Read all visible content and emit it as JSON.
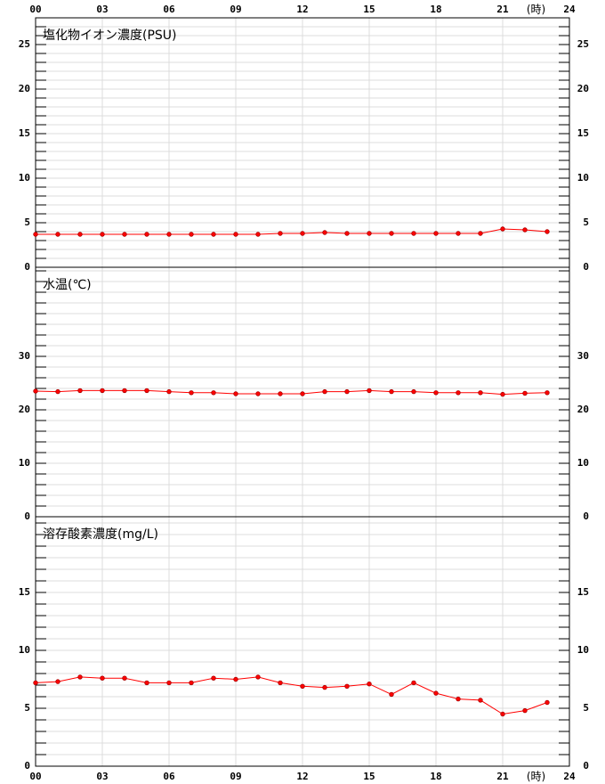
{
  "x_axis": {
    "xlim": [
      0,
      24
    ],
    "xticks": [
      {
        "value": 0,
        "label": "00"
      },
      {
        "value": 3,
        "label": "03"
      },
      {
        "value": 6,
        "label": "06"
      },
      {
        "value": 9,
        "label": "09"
      },
      12,
      15,
      18,
      21,
      24
    ],
    "label": "(時)"
  },
  "chart_data": [
    {
      "type": "line",
      "title": "塩化物イオン濃度(PSU)",
      "color": "#ff0000",
      "x": [
        0,
        1,
        2,
        3,
        4,
        5,
        6,
        7,
        8,
        9,
        10,
        11,
        12,
        13,
        14,
        15,
        16,
        17,
        18,
        19,
        20,
        21,
        22,
        23
      ],
      "values": [
        3.7,
        3.7,
        3.7,
        3.7,
        3.7,
        3.7,
        3.7,
        3.7,
        3.7,
        3.7,
        3.7,
        3.8,
        3.8,
        3.9,
        3.8,
        3.8,
        3.8,
        3.8,
        3.8,
        3.8,
        3.8,
        4.3,
        4.2,
        4.0
      ],
      "ylim": [
        0,
        28
      ],
      "yticks": [
        0,
        5,
        10,
        15,
        20,
        25
      ],
      "minor_tick_step": 1,
      "grid": true
    },
    {
      "type": "line",
      "title": "水温(℃)",
      "color": "#ff0000",
      "x": [
        0,
        1,
        2,
        3,
        4,
        5,
        6,
        7,
        8,
        9,
        10,
        11,
        12,
        13,
        14,
        15,
        16,
        17,
        18,
        19,
        20,
        21,
        22,
        23
      ],
      "values": [
        23.5,
        23.4,
        23.6,
        23.6,
        23.6,
        23.6,
        23.4,
        23.2,
        23.2,
        23.0,
        23.0,
        23.0,
        23.0,
        23.4,
        23.4,
        23.6,
        23.4,
        23.4,
        23.2,
        23.2,
        23.2,
        22.9,
        23.1,
        23.2
      ],
      "ylim": [
        0,
        46.67
      ],
      "yticks": [
        0,
        10,
        20,
        30
      ],
      "minor_tick_step": 2,
      "grid": true
    },
    {
      "type": "line",
      "title": "溶存酸素濃度(mg/L)",
      "color": "#ff0000",
      "x": [
        0,
        1,
        2,
        3,
        4,
        5,
        6,
        7,
        8,
        9,
        10,
        11,
        12,
        13,
        14,
        15,
        16,
        17,
        18,
        19,
        20,
        21,
        22,
        23
      ],
      "values": [
        7.2,
        7.3,
        7.7,
        7.6,
        7.6,
        7.2,
        7.2,
        7.2,
        7.6,
        7.5,
        7.7,
        7.2,
        6.9,
        6.8,
        6.9,
        7.1,
        6.2,
        7.2,
        6.3,
        5.8,
        5.7,
        4.5,
        4.8,
        5.5
      ],
      "ylim": [
        0,
        21.54
      ],
      "yticks": [
        0,
        5,
        10,
        15
      ],
      "minor_tick_step": 1,
      "grid": true
    }
  ]
}
